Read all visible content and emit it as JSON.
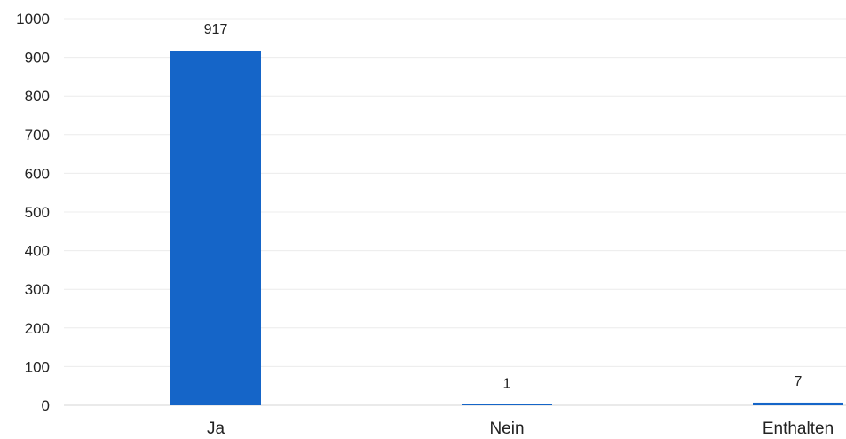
{
  "chart_data": {
    "type": "bar",
    "categories": [
      "Ja",
      "Nein",
      "Enthalten"
    ],
    "values": [
      917,
      1,
      7
    ],
    "data_labels": [
      "917",
      "1",
      "7"
    ],
    "ylim": [
      0,
      1000
    ],
    "y_ticks": [
      0,
      100,
      200,
      300,
      400,
      500,
      600,
      700,
      800,
      900,
      1000
    ],
    "y_tick_labels": [
      "0",
      "100",
      "200",
      "300",
      "400",
      "500",
      "600",
      "700",
      "800",
      "900",
      "1000"
    ],
    "grid": true,
    "legend": "none",
    "colors": {
      "bar": "#1565c8",
      "grid": "#ececec",
      "text": "#222222"
    }
  }
}
